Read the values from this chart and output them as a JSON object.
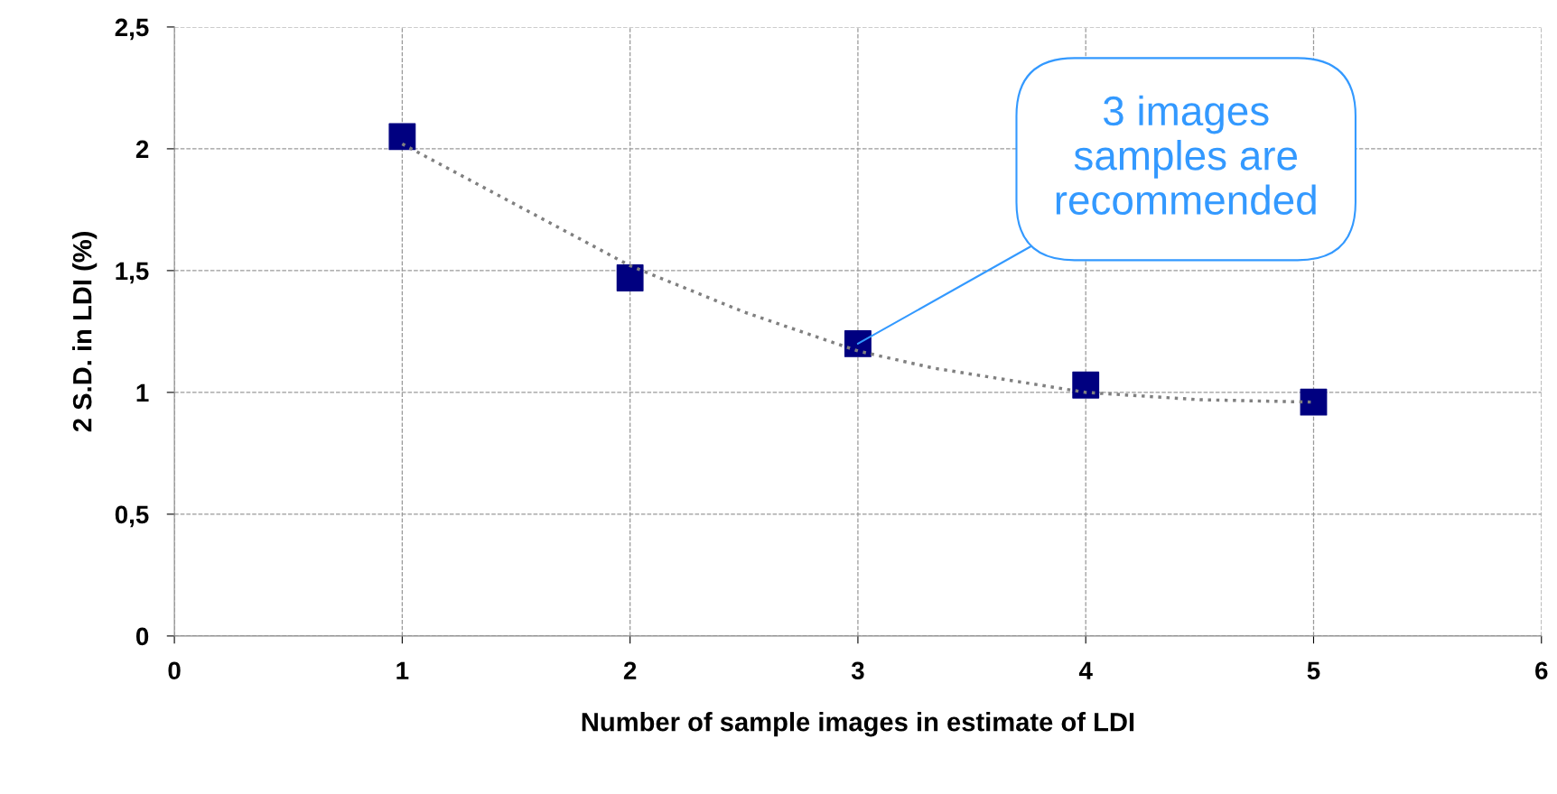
{
  "chart_data": {
    "type": "scatter",
    "xlabel": "Number of sample images in estimate of LDI",
    "ylabel": "2 S.D. in LDI (%)",
    "x": [
      1,
      2,
      3,
      4,
      5
    ],
    "series": [
      {
        "type": "scatter",
        "color": "#000080",
        "marker": "square",
        "values": [
          2.05,
          1.47,
          1.2,
          1.03,
          0.96
        ]
      },
      {
        "type": "line",
        "color": "#808080",
        "line_style": "dotted",
        "marker": "none",
        "x": [
          1,
          1.4,
          2,
          2.5,
          3,
          3.33,
          4,
          4.5,
          5
        ],
        "values": [
          2.02,
          1.82,
          1.52,
          1.33,
          1.17,
          1.1,
          1.0,
          0.97,
          0.96
        ]
      }
    ],
    "annotations": [
      {
        "text": "3 images\nsamples are\nrecommended",
        "x": 3,
        "y": 1.2
      }
    ],
    "xlim": [
      0,
      6
    ],
    "xticks": [
      0,
      1,
      2,
      3,
      4,
      5,
      6
    ],
    "ylim": [
      0,
      2.5
    ],
    "yticks": [
      0,
      {
        "value": 0.5,
        "label": "0,5"
      },
      1,
      {
        "value": 1.5,
        "label": "1,5"
      },
      2,
      {
        "value": 2.5,
        "label": "2,5"
      }
    ],
    "grid": true
  }
}
